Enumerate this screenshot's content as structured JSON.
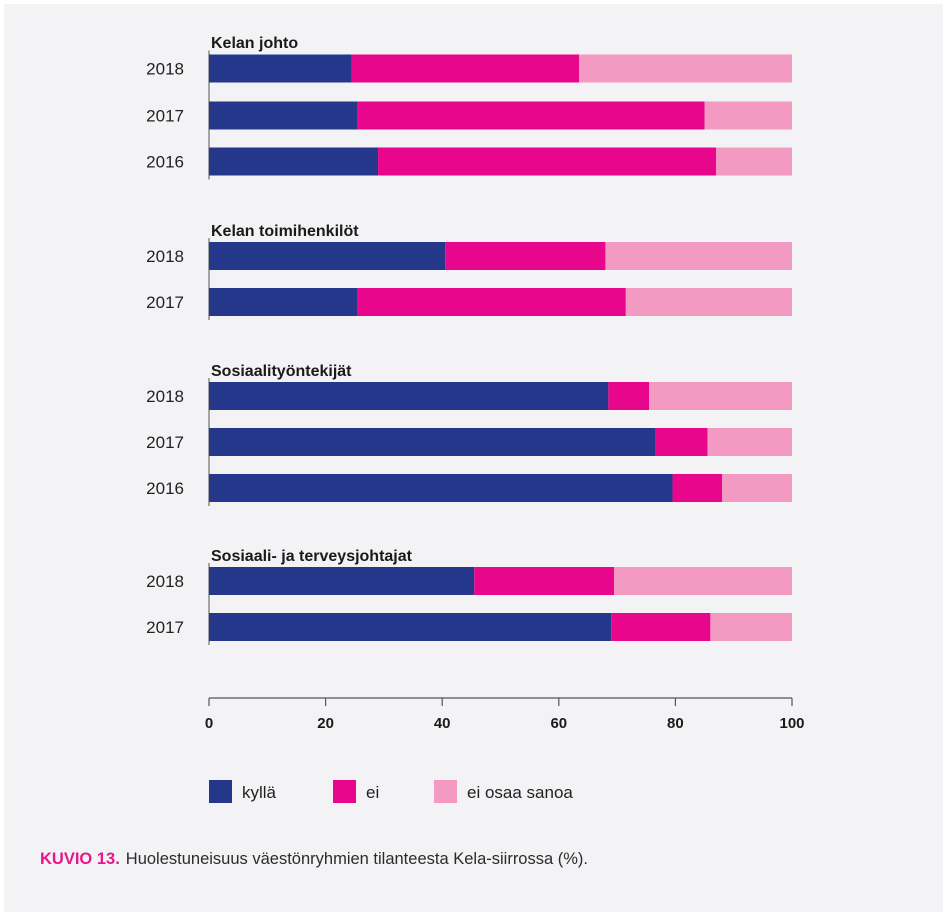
{
  "colors": {
    "kylla": "#24378a",
    "ei": "#e8068c",
    "eos": "#f39ac3",
    "axis": "#555555"
  },
  "chart_data": {
    "type": "bar",
    "orientation": "horizontal",
    "stacked": true,
    "xlim": [
      0,
      100
    ],
    "xticks": [
      "0",
      "20",
      "40",
      "60",
      "80",
      "100"
    ],
    "legend_position": "bottom",
    "legend": [
      {
        "key": "kylla",
        "label": "kyllä"
      },
      {
        "key": "ei",
        "label": "ei"
      },
      {
        "key": "eos",
        "label": "ei osaa sanoa"
      }
    ],
    "groups": [
      {
        "title": "Kelan johto",
        "rows": [
          {
            "year": "2018",
            "kylla": 24.5,
            "ei": 39,
            "eos": 36.5
          },
          {
            "year": "2017",
            "kylla": 25.5,
            "ei": 59.5,
            "eos": 15
          },
          {
            "year": "2016",
            "kylla": 29,
            "ei": 58,
            "eos": 13
          }
        ]
      },
      {
        "title": "Kelan toimihenkilöt",
        "rows": [
          {
            "year": "2018",
            "kylla": 40.5,
            "ei": 27.5,
            "eos": 32
          },
          {
            "year": "2017",
            "kylla": 25.5,
            "ei": 46,
            "eos": 28.5
          }
        ]
      },
      {
        "title": "Sosiaalityöntekijät",
        "rows": [
          {
            "year": "2018",
            "kylla": 68.5,
            "ei": 7,
            "eos": 24.5
          },
          {
            "year": "2017",
            "kylla": 76.5,
            "ei": 9,
            "eos": 14.5
          },
          {
            "year": "2016",
            "kylla": 79.5,
            "ei": 8.5,
            "eos": 12
          }
        ]
      },
      {
        "title": "Sosiaali- ja terveysjohtajat",
        "rows": [
          {
            "year": "2018",
            "kylla": 45.5,
            "ei": 24,
            "eos": 30.5
          },
          {
            "year": "2017",
            "kylla": 69,
            "ei": 17,
            "eos": 14
          }
        ]
      }
    ]
  },
  "caption": {
    "lead": "KUVIO 13.",
    "text": "Huolestuneisuus väestönryhmien tilanteesta Kela-siirrossa (%)."
  }
}
